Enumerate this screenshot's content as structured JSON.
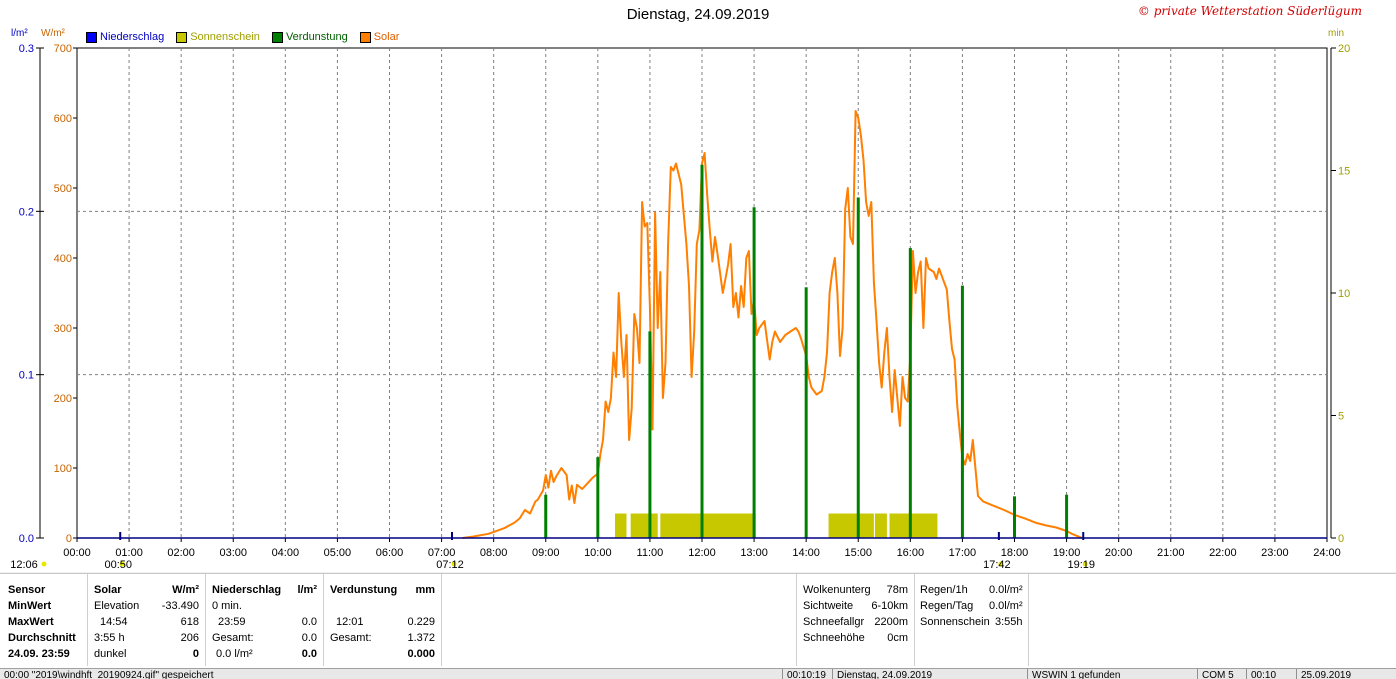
{
  "header": {
    "title": "Dienstag, 24.09.2019",
    "copyright": "© private Wetterstation Süderlügum"
  },
  "units": {
    "left_precip": "l/m²",
    "left_solar": "W/m²",
    "right_minutes": "min"
  },
  "legend": [
    {
      "label": "Niederschlag",
      "color": "#0000ff"
    },
    {
      "label": "Sonnenschein",
      "color": "#c8c800"
    },
    {
      "label": "Verdunstung",
      "color": "#008000"
    },
    {
      "label": "Solar",
      "color": "#ff7f00"
    }
  ],
  "chart_data": {
    "type": "line",
    "title": "Dienstag, 24.09.2019",
    "x_ticks": [
      "00:00",
      "01:00",
      "02:00",
      "03:00",
      "04:00",
      "05:00",
      "06:00",
      "07:00",
      "08:00",
      "09:00",
      "10:00",
      "11:00",
      "12:00",
      "13:00",
      "14:00",
      "15:00",
      "16:00",
      "17:00",
      "18:00",
      "19:00",
      "20:00",
      "21:00",
      "22:00",
      "23:00",
      "24:00"
    ],
    "xlim": [
      0,
      24
    ],
    "y_axes": {
      "precip": {
        "label": "l/m²",
        "ticks": [
          "0.0",
          "0.1",
          "0.2",
          "0.3"
        ],
        "ylim": [
          0,
          0.3
        ],
        "color": "#0000c0"
      },
      "solar": {
        "label": "W/m²",
        "ticks": [
          "0",
          "100",
          "200",
          "300",
          "400",
          "500",
          "600",
          "700"
        ],
        "ylim": [
          0,
          700
        ],
        "color": "#c86400"
      },
      "minutes": {
        "label": "min",
        "ticks": [
          "0",
          "5",
          "10",
          "15",
          "20"
        ],
        "ylim": [
          0,
          20
        ],
        "color": "#a0a000"
      }
    },
    "grid": true,
    "series": [
      {
        "name": "Solar",
        "color": "#ff7f00",
        "points": [
          [
            7.4,
            0
          ],
          [
            7.6,
            2
          ],
          [
            7.9,
            6
          ],
          [
            8.2,
            14
          ],
          [
            8.4,
            22
          ],
          [
            8.5,
            28
          ],
          [
            8.6,
            40
          ],
          [
            8.7,
            35
          ],
          [
            8.8,
            52
          ],
          [
            8.85,
            55
          ],
          [
            8.95,
            68
          ],
          [
            9.0,
            90
          ],
          [
            9.05,
            72
          ],
          [
            9.1,
            96
          ],
          [
            9.15,
            80
          ],
          [
            9.2,
            88
          ],
          [
            9.3,
            100
          ],
          [
            9.4,
            90
          ],
          [
            9.45,
            55
          ],
          [
            9.5,
            75
          ],
          [
            9.55,
            50
          ],
          [
            9.6,
            76
          ],
          [
            9.7,
            70
          ],
          [
            9.8,
            78
          ],
          [
            9.9,
            86
          ],
          [
            10.0,
            92
          ],
          [
            10.05,
            120
          ],
          [
            10.1,
            140
          ],
          [
            10.15,
            195
          ],
          [
            10.2,
            180
          ],
          [
            10.25,
            200
          ],
          [
            10.3,
            265
          ],
          [
            10.35,
            230
          ],
          [
            10.4,
            350
          ],
          [
            10.45,
            280
          ],
          [
            10.5,
            230
          ],
          [
            10.55,
            290
          ],
          [
            10.6,
            140
          ],
          [
            10.65,
            185
          ],
          [
            10.7,
            320
          ],
          [
            10.75,
            300
          ],
          [
            10.8,
            250
          ],
          [
            10.85,
            480
          ],
          [
            10.9,
            445
          ],
          [
            10.95,
            450
          ],
          [
            11.0,
            330
          ],
          [
            11.05,
            155
          ],
          [
            11.1,
            465
          ],
          [
            11.15,
            300
          ],
          [
            11.2,
            380
          ],
          [
            11.25,
            200
          ],
          [
            11.3,
            250
          ],
          [
            11.35,
            420
          ],
          [
            11.4,
            530
          ],
          [
            11.45,
            525
          ],
          [
            11.5,
            535
          ],
          [
            11.55,
            520
          ],
          [
            11.6,
            505
          ],
          [
            11.7,
            420
          ],
          [
            11.75,
            360
          ],
          [
            11.8,
            230
          ],
          [
            11.85,
            295
          ],
          [
            11.9,
            420
          ],
          [
            11.95,
            440
          ],
          [
            12.0,
            535
          ],
          [
            12.05,
            550
          ],
          [
            12.1,
            490
          ],
          [
            12.15,
            440
          ],
          [
            12.2,
            395
          ],
          [
            12.25,
            430
          ],
          [
            12.3,
            405
          ],
          [
            12.4,
            350
          ],
          [
            12.5,
            390
          ],
          [
            12.55,
            420
          ],
          [
            12.6,
            330
          ],
          [
            12.65,
            350
          ],
          [
            12.7,
            315
          ],
          [
            12.75,
            360
          ],
          [
            12.8,
            330
          ],
          [
            12.85,
            400
          ],
          [
            12.9,
            410
          ],
          [
            12.95,
            320
          ],
          [
            13.0,
            340
          ],
          [
            13.05,
            290
          ],
          [
            13.1,
            300
          ],
          [
            13.2,
            310
          ],
          [
            13.3,
            255
          ],
          [
            13.35,
            280
          ],
          [
            13.4,
            295
          ],
          [
            13.5,
            280
          ],
          [
            13.6,
            290
          ],
          [
            13.7,
            295
          ],
          [
            13.8,
            300
          ],
          [
            13.85,
            295
          ],
          [
            13.9,
            285
          ],
          [
            14.0,
            260
          ],
          [
            14.05,
            230
          ],
          [
            14.1,
            215
          ],
          [
            14.2,
            205
          ],
          [
            14.3,
            210
          ],
          [
            14.35,
            230
          ],
          [
            14.4,
            265
          ],
          [
            14.45,
            350
          ],
          [
            14.5,
            380
          ],
          [
            14.55,
            400
          ],
          [
            14.6,
            350
          ],
          [
            14.65,
            260
          ],
          [
            14.7,
            300
          ],
          [
            14.75,
            470
          ],
          [
            14.8,
            500
          ],
          [
            14.85,
            430
          ],
          [
            14.9,
            420
          ],
          [
            14.95,
            610
          ],
          [
            15.0,
            600
          ],
          [
            15.05,
            575
          ],
          [
            15.1,
            540
          ],
          [
            15.15,
            480
          ],
          [
            15.2,
            460
          ],
          [
            15.25,
            480
          ],
          [
            15.3,
            365
          ],
          [
            15.35,
            310
          ],
          [
            15.4,
            250
          ],
          [
            15.45,
            215
          ],
          [
            15.5,
            265
          ],
          [
            15.55,
            300
          ],
          [
            15.6,
            230
          ],
          [
            15.65,
            180
          ],
          [
            15.7,
            240
          ],
          [
            15.75,
            200
          ],
          [
            15.8,
            160
          ],
          [
            15.85,
            230
          ],
          [
            15.9,
            200
          ],
          [
            15.95,
            195
          ],
          [
            16.0,
            260
          ],
          [
            16.05,
            410
          ],
          [
            16.1,
            350
          ],
          [
            16.15,
            380
          ],
          [
            16.2,
            395
          ],
          [
            16.25,
            300
          ],
          [
            16.3,
            400
          ],
          [
            16.35,
            385
          ],
          [
            16.45,
            380
          ],
          [
            16.5,
            370
          ],
          [
            16.55,
            385
          ],
          [
            16.6,
            375
          ],
          [
            16.65,
            365
          ],
          [
            16.7,
            355
          ],
          [
            16.75,
            310
          ],
          [
            16.8,
            270
          ],
          [
            16.85,
            255
          ],
          [
            16.9,
            190
          ],
          [
            16.95,
            150
          ],
          [
            17.0,
            115
          ],
          [
            17.05,
            105
          ],
          [
            17.1,
            120
          ],
          [
            17.15,
            110
          ],
          [
            17.2,
            140
          ],
          [
            17.3,
            60
          ],
          [
            17.4,
            52
          ],
          [
            17.6,
            46
          ],
          [
            17.8,
            40
          ],
          [
            18.0,
            33
          ],
          [
            18.2,
            28
          ],
          [
            18.4,
            22
          ],
          [
            18.6,
            18
          ],
          [
            18.8,
            15
          ],
          [
            19.0,
            10
          ],
          [
            19.1,
            6
          ],
          [
            19.2,
            3
          ],
          [
            19.3,
            0
          ]
        ]
      },
      {
        "name": "Sonnenschein",
        "color": "#c8c800",
        "axis": "minutes",
        "intervals": [
          [
            10.33,
            10.55
          ],
          [
            10.63,
            11.15
          ],
          [
            11.2,
            13.03
          ],
          [
            14.43,
            15.3
          ],
          [
            15.32,
            15.55
          ],
          [
            15.6,
            16.52
          ]
        ],
        "value_min": 1
      },
      {
        "name": "Verdunstung",
        "color": "#008000",
        "axis": "precip",
        "points": [
          [
            9.0,
            0.0265
          ],
          [
            10.0,
            0.0495
          ],
          [
            11.0,
            0.1265
          ],
          [
            12.0,
            0.2285
          ],
          [
            13.0,
            0.2025
          ],
          [
            14.0,
            0.1535
          ],
          [
            15.0,
            0.2085
          ],
          [
            16.0,
            0.1775
          ],
          [
            17.0,
            0.1545
          ],
          [
            18.0,
            0.0255
          ],
          [
            19.0,
            0.0265
          ]
        ]
      }
    ],
    "markers": [
      {
        "label": "12:06",
        "position": "left-edge"
      },
      {
        "label": "00:50",
        "hour": 0.83
      },
      {
        "label": "07:12",
        "hour": 7.2
      },
      {
        "label": "17:42",
        "hour": 17.7
      },
      {
        "label": "19:19",
        "hour": 19.32
      }
    ]
  },
  "panel": {
    "col1": {
      "rows": [
        "Sensor",
        "MinWert",
        "MaxWert",
        "Durchschnitt",
        "24.09. 23:59"
      ]
    },
    "col2": {
      "h1": "Solar",
      "h2": "W/m²",
      "rows": [
        [
          "Elevation",
          "-33.490"
        ],
        [
          "14:54",
          "618"
        ],
        [
          "3:55 h",
          "206"
        ],
        [
          "dunkel",
          "0"
        ]
      ]
    },
    "col3": {
      "h1": "Niederschlag",
      "h2": "l/m²",
      "rows": [
        [
          "0 min.",
          ""
        ],
        [
          "23:59",
          "0.0"
        ],
        [
          "Gesamt:",
          "0.0"
        ],
        [
          "0.0 l/m²",
          "0.0"
        ]
      ]
    },
    "col4": {
      "h1": "Verdunstung",
      "h2": "mm",
      "rows": [
        [
          "",
          ""
        ],
        [
          "12:01",
          "0.229"
        ],
        [
          "Gesamt:",
          "1.372"
        ],
        [
          "",
          "0.000"
        ]
      ]
    },
    "col5": {
      "rows": [
        [
          "Wolkenunterg",
          "78m"
        ],
        [
          "Sichtweite",
          "6-10km"
        ],
        [
          "Schneefallgr",
          "2200m"
        ],
        [
          "Schneehöhe",
          "0cm"
        ]
      ]
    },
    "col6": {
      "rows": [
        [
          "Regen/1h",
          "0.0l/m²"
        ],
        [
          "Regen/Tag",
          "0.0l/m²"
        ],
        [
          "Sonnenschein",
          "3:55h"
        ]
      ]
    }
  },
  "statusbar": [
    "00:00  \"2019\\windhft_20190924.gif\" gespeichert",
    "00:10:19",
    "Dienstag, 24.09.2019",
    "WSWIN 1 gefunden",
    "COM 5",
    "00:10",
    "25.09.2019"
  ]
}
